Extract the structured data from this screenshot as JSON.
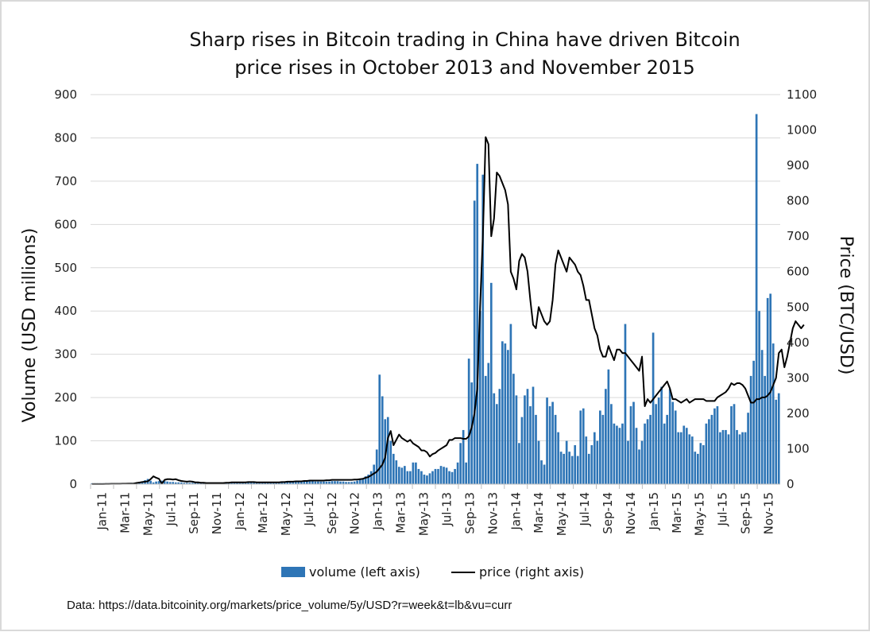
{
  "chart_data": {
    "type": "bar+line",
    "title_lines": [
      "Sharp rises in Bitcoin trading in China have driven Bitcoin",
      "price rises in October 2013 and November 2015"
    ],
    "ylabel_left": "Volume (USD millions)",
    "ylabel_right": "Price (BTC/USD)",
    "ylim_left": [
      0,
      900
    ],
    "ylim_right": [
      0,
      1100
    ],
    "yticks_left": [
      "0",
      "100",
      "200",
      "300",
      "400",
      "500",
      "600",
      "700",
      "800",
      "900"
    ],
    "yticks_right": [
      "0",
      "100",
      "200",
      "300",
      "400",
      "500",
      "600",
      "700",
      "800",
      "900",
      "1000",
      "1100"
    ],
    "x_tick_labels": [
      "Jan-11",
      "Mar-11",
      "May-11",
      "Jul-11",
      "Sep-11",
      "Nov-11",
      "Jan-12",
      "Mar-12",
      "May-12",
      "Jul-12",
      "Sep-12",
      "Nov-12",
      "Jan-13",
      "Mar-13",
      "May-13",
      "Jul-13",
      "Sep-13",
      "Nov-13",
      "Jan-14",
      "Mar-14",
      "May-14",
      "Jul-14",
      "Sep-14",
      "Nov-14",
      "Jan-15",
      "Mar-15",
      "May-15",
      "Jul-15",
      "Sep-15",
      "Nov-15"
    ],
    "legend": [
      "volume (left axis)",
      "price (right axis)"
    ],
    "source": "Data: https://data.bitcoinity.org/markets/price_volume/5y/USD?r=week&t=lb&vu=curr",
    "series": [
      {
        "name": "volume (left axis)",
        "axis": "left",
        "color": "#2E75B6",
        "values": [
          2,
          2,
          2,
          2,
          2,
          2,
          2,
          2,
          2,
          2,
          2,
          2,
          2,
          2,
          3,
          3,
          4,
          5,
          6,
          9,
          12,
          8,
          4,
          6,
          7,
          8,
          7,
          6,
          5,
          5,
          4,
          4,
          4,
          3,
          3,
          3,
          3,
          3,
          3,
          3,
          3,
          2,
          2,
          2,
          2,
          2,
          2,
          3,
          3,
          3,
          4,
          4,
          5,
          5,
          5,
          5,
          4,
          4,
          4,
          4,
          4,
          4,
          4,
          4,
          4,
          4,
          4,
          4,
          4,
          5,
          5,
          6,
          6,
          6,
          6,
          6,
          7,
          7,
          7,
          7,
          6,
          6,
          6,
          6,
          6,
          6,
          7,
          7,
          7,
          6,
          6,
          5,
          5,
          5,
          6,
          8,
          12,
          14,
          18,
          22,
          30,
          45,
          80,
          253,
          203,
          150,
          155,
          100,
          70,
          55,
          40,
          38,
          42,
          30,
          30,
          50,
          50,
          35,
          30,
          22,
          20,
          25,
          30,
          35,
          35,
          42,
          40,
          38,
          30,
          28,
          35,
          50,
          95,
          125,
          50,
          290,
          235,
          655,
          740,
          400,
          715,
          250,
          280,
          465,
          210,
          185,
          220,
          330,
          325,
          310,
          370,
          255,
          205,
          95,
          155,
          205,
          220,
          180,
          225,
          160,
          100,
          55,
          45,
          200,
          180,
          190,
          160,
          120,
          75,
          70,
          100,
          75,
          65,
          90,
          65,
          170,
          175,
          110,
          70,
          90,
          120,
          100,
          170,
          160,
          220,
          265,
          185,
          140,
          135,
          130,
          140,
          370,
          100,
          180,
          190,
          130,
          80,
          100,
          140,
          150,
          160,
          350,
          185,
          200,
          225,
          140,
          160,
          220,
          190,
          170,
          120,
          120,
          135,
          130,
          115,
          110,
          75,
          70,
          95,
          90,
          140,
          150,
          160,
          175,
          180,
          120,
          125,
          125,
          115,
          180,
          185,
          125,
          115,
          120,
          120,
          165,
          250,
          285,
          855,
          400,
          310,
          250,
          430,
          440,
          325,
          195,
          210
        ]
      },
      {
        "name": "price (right axis)",
        "axis": "right",
        "color": "#000000",
        "values": [
          0.3,
          0.3,
          0.3,
          0.3,
          0.4,
          0.5,
          0.6,
          0.8,
          0.9,
          0.9,
          0.9,
          1,
          1.1,
          1.3,
          1.5,
          1.8,
          3.5,
          4.5,
          6,
          7,
          8,
          14,
          22,
          18,
          15,
          1,
          12,
          14,
          14,
          13,
          14,
          11,
          9,
          8,
          7,
          8,
          7,
          5,
          5,
          4,
          4,
          3,
          3,
          3,
          3,
          3,
          3,
          3,
          4,
          4,
          5,
          5,
          5,
          5,
          5,
          5,
          6,
          6,
          6,
          5,
          5,
          5,
          5,
          5,
          5,
          5,
          5,
          5,
          6,
          6,
          7,
          7,
          7,
          8,
          8,
          8,
          9,
          9,
          10,
          10,
          10,
          10,
          10,
          10,
          11,
          11,
          12,
          12,
          12,
          12,
          12,
          12,
          12,
          12,
          13,
          13,
          14,
          15,
          18,
          20,
          25,
          30,
          35,
          45,
          55,
          75,
          130,
          150,
          110,
          125,
          140,
          130,
          125,
          120,
          125,
          115,
          110,
          105,
          95,
          95,
          90,
          78,
          85,
          88,
          95,
          100,
          105,
          110,
          125,
          125,
          130,
          130,
          130,
          128,
          128,
          135,
          160,
          200,
          270,
          500,
          700,
          980,
          960,
          700,
          750,
          880,
          870,
          850,
          830,
          790,
          600,
          580,
          550,
          630,
          650,
          640,
          600,
          520,
          450,
          440,
          500,
          480,
          460,
          450,
          460,
          520,
          620,
          660,
          640,
          620,
          600,
          640,
          630,
          620,
          600,
          590,
          560,
          520,
          520,
          480,
          440,
          420,
          380,
          360,
          360,
          390,
          370,
          350,
          380,
          380,
          370,
          370,
          360,
          350,
          340,
          330,
          320,
          360,
          220,
          240,
          230,
          240,
          250,
          260,
          270,
          280,
          290,
          270,
          240,
          240,
          235,
          230,
          235,
          240,
          230,
          235,
          240,
          240,
          240,
          240,
          235,
          235,
          235,
          235,
          245,
          250,
          255,
          260,
          270,
          285,
          280,
          285,
          285,
          280,
          270,
          250,
          230,
          230,
          240,
          240,
          245,
          245,
          250,
          260,
          280,
          300,
          370,
          380,
          330,
          360,
          400,
          440,
          460,
          450,
          440,
          450
        ]
      }
    ]
  }
}
